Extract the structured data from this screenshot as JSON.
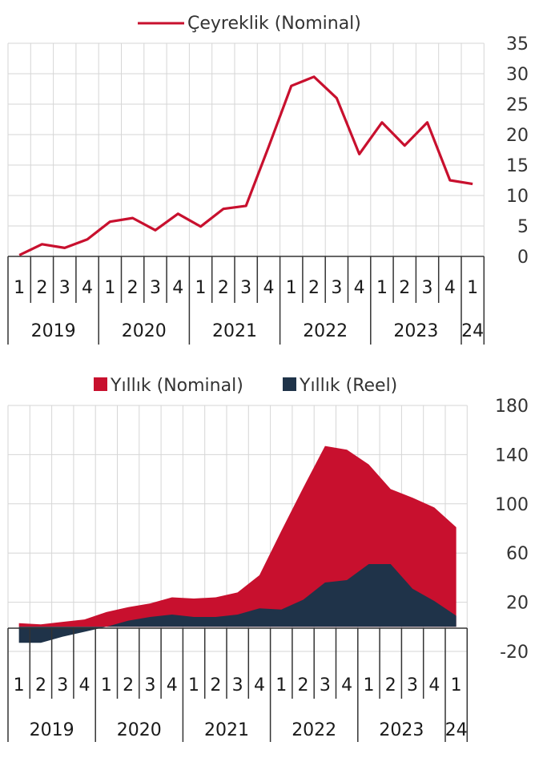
{
  "colors": {
    "nominal_red": "#c8102e",
    "reel_navy": "#1f3349",
    "grid": "#d6d6d6",
    "axis": "#333333"
  },
  "chart_data": [
    {
      "type": "line",
      "title": "",
      "legend": [
        "Çeyreklik (Nominal)"
      ],
      "legend_position": "top-center",
      "y_axis_side": "right",
      "ylim": [
        0,
        35
      ],
      "y_ticks": [
        "35",
        "30",
        "25",
        "20",
        "15",
        "10",
        "5",
        "0"
      ],
      "x_quarter_labels": [
        "1",
        "2",
        "3",
        "4",
        "1",
        "2",
        "3",
        "4",
        "1",
        "2",
        "3",
        "4",
        "1",
        "2",
        "3",
        "4",
        "1",
        "2",
        "3",
        "4",
        "1"
      ],
      "x_year_labels": [
        "2019",
        "2020",
        "2021",
        "2022",
        "2023",
        "24"
      ],
      "series": [
        {
          "name": "Çeyreklik (Nominal)",
          "x": [
            "2019Q1",
            "2019Q2",
            "2019Q3",
            "2019Q4",
            "2020Q1",
            "2020Q2",
            "2020Q3",
            "2020Q4",
            "2021Q1",
            "2021Q2",
            "2021Q3",
            "2021Q4",
            "2022Q1",
            "2022Q2",
            "2022Q3",
            "2022Q4",
            "2023Q1",
            "2023Q2",
            "2023Q3",
            "2023Q4",
            "2024Q1"
          ],
          "values": [
            0.2,
            2.0,
            1.4,
            2.8,
            5.7,
            6.3,
            4.3,
            7.0,
            4.9,
            7.8,
            8.3,
            18.0,
            28.0,
            29.5,
            26.0,
            16.8,
            22.0,
            18.2,
            22.0,
            12.5,
            11.9
          ]
        }
      ]
    },
    {
      "type": "area",
      "title": "",
      "legend": [
        "Yıllık (Nominal)",
        "Yıllık (Reel)"
      ],
      "legend_position": "top-center",
      "y_axis_side": "right",
      "ylim": [
        -20,
        180
      ],
      "y_ticks": [
        "180",
        "140",
        "100",
        "60",
        "20",
        "-20"
      ],
      "x_quarter_labels": [
        "1",
        "2",
        "3",
        "4",
        "1",
        "2",
        "3",
        "4",
        "1",
        "2",
        "3",
        "4",
        "1",
        "2",
        "3",
        "4",
        "1",
        "2",
        "3",
        "4",
        "1"
      ],
      "x_year_labels": [
        "2019",
        "2020",
        "2021",
        "2022",
        "2023",
        "24"
      ],
      "series": [
        {
          "name": "Yıllık (Nominal)",
          "x": [
            "2019Q1",
            "2019Q2",
            "2019Q3",
            "2019Q4",
            "2020Q1",
            "2020Q2",
            "2020Q3",
            "2020Q4",
            "2021Q1",
            "2021Q2",
            "2021Q3",
            "2021Q4",
            "2022Q1",
            "2022Q2",
            "2022Q3",
            "2022Q4",
            "2023Q1",
            "2023Q2",
            "2023Q3",
            "2023Q4",
            "2024Q1"
          ],
          "values": [
            3,
            2,
            4,
            6,
            12,
            16,
            19,
            24,
            23,
            24,
            28,
            42,
            78,
            113,
            147,
            144,
            132,
            112,
            105,
            97,
            81
          ]
        },
        {
          "name": "Yıllık (Reel)",
          "x": [
            "2019Q1",
            "2019Q2",
            "2019Q3",
            "2019Q4",
            "2020Q1",
            "2020Q2",
            "2020Q3",
            "2020Q4",
            "2021Q1",
            "2021Q2",
            "2021Q3",
            "2021Q4",
            "2022Q1",
            "2022Q2",
            "2022Q3",
            "2022Q4",
            "2023Q1",
            "2023Q2",
            "2023Q3",
            "2023Q4",
            "2024Q1"
          ],
          "values": [
            -13,
            -13,
            -8,
            -4,
            0,
            5,
            8,
            10,
            8,
            8,
            10,
            15,
            14,
            22,
            36,
            38,
            51,
            51,
            31,
            21,
            9
          ]
        }
      ]
    }
  ]
}
